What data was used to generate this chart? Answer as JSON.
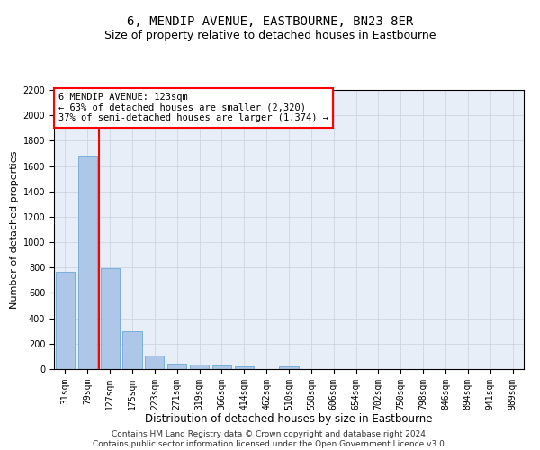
{
  "title": "6, MENDIP AVENUE, EASTBOURNE, BN23 8ER",
  "subtitle": "Size of property relative to detached houses in Eastbourne",
  "xlabel": "Distribution of detached houses by size in Eastbourne",
  "ylabel": "Number of detached properties",
  "bar_labels": [
    "31sqm",
    "79sqm",
    "127sqm",
    "175sqm",
    "223sqm",
    "271sqm",
    "319sqm",
    "366sqm",
    "414sqm",
    "462sqm",
    "510sqm",
    "558sqm",
    "606sqm",
    "654sqm",
    "702sqm",
    "750sqm",
    "798sqm",
    "846sqm",
    "894sqm",
    "941sqm",
    "989sqm"
  ],
  "bar_values": [
    770,
    1680,
    795,
    300,
    110,
    45,
    32,
    26,
    22,
    0,
    22,
    0,
    0,
    0,
    0,
    0,
    0,
    0,
    0,
    0,
    0
  ],
  "bar_color": "#aec6e8",
  "bar_edge_color": "#5a9fd4",
  "vline_color": "red",
  "annotation_text": "6 MENDIP AVENUE: 123sqm\n← 63% of detached houses are smaller (2,320)\n37% of semi-detached houses are larger (1,374) →",
  "annotation_box_color": "#ffffff",
  "annotation_box_edge": "red",
  "ylim": [
    0,
    2200
  ],
  "yticks": [
    0,
    200,
    400,
    600,
    800,
    1000,
    1200,
    1400,
    1600,
    1800,
    2000,
    2200
  ],
  "grid_color": "#c8d0dc",
  "bg_color": "#e8eef7",
  "footer": "Contains HM Land Registry data © Crown copyright and database right 2024.\nContains public sector information licensed under the Open Government Licence v3.0.",
  "title_fontsize": 10,
  "subtitle_fontsize": 9,
  "xlabel_fontsize": 8.5,
  "ylabel_fontsize": 8,
  "tick_fontsize": 7,
  "annotation_fontsize": 7.5,
  "footer_fontsize": 6.5
}
